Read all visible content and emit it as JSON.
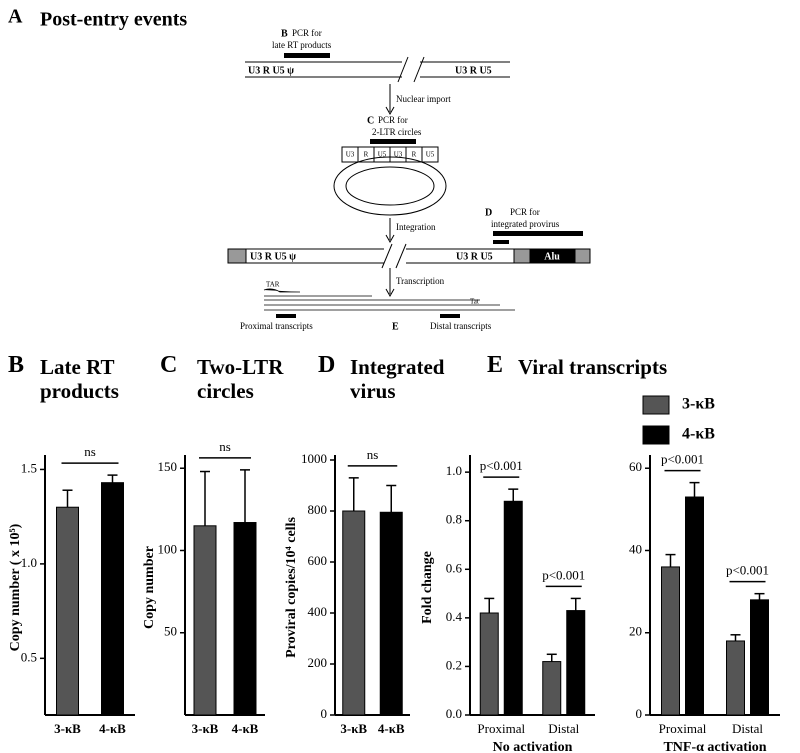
{
  "panel_a": {
    "label": "A",
    "title": "Post-entry events",
    "pcr_b": {
      "label": "B",
      "line1": "PCR for",
      "line2": "late RT products"
    },
    "ltr_left": "U3  R U5 ψ",
    "ltr_right": "U3  R U5",
    "step1": "Nuclear import",
    "pcr_c": {
      "label": "C",
      "line1": "PCR for",
      "line2": "2-LTR circles"
    },
    "circle_boxes": [
      "U3",
      "R",
      "U5",
      "U3",
      "R",
      "U5"
    ],
    "step2": "Integration",
    "pcr_d": {
      "label": "D",
      "line1": "PCR for",
      "line2": "integrated provirus"
    },
    "provirus_left": "U3  R U5 ψ",
    "provirus_right": "U3  R U5",
    "alu": "Alu",
    "step3": "Transcription",
    "tar": "TAR",
    "tat": "Tat",
    "proximal": "Proximal transcripts",
    "e_label": "E",
    "distal": "Distal transcripts"
  },
  "chart_data": [
    {
      "type": "bar",
      "label": "B",
      "title": "Late RT products",
      "ylabel": "Copy number ( x 10⁵)",
      "categories": [
        "3-κB",
        "4-κB"
      ],
      "values": [
        1.3,
        1.43
      ],
      "errors": [
        0.09,
        0.04
      ],
      "colors": [
        "#555555",
        "#000000"
      ],
      "ylim": [
        0.2,
        1.55
      ],
      "yticks": [
        0.5,
        {
          "value": 1,
          "label": "1.0"
        },
        1.5
      ],
      "annotation": "ns"
    },
    {
      "type": "bar",
      "label": "C",
      "title": "Two-LTR circles",
      "ylabel": "Copy number",
      "categories": [
        "3-κB",
        "4-κB"
      ],
      "values": [
        115,
        117
      ],
      "errors": [
        33,
        32
      ],
      "colors": [
        "#555555",
        "#000000"
      ],
      "ylim": [
        0,
        155
      ],
      "yticks": [
        50,
        100,
        150
      ],
      "annotation": "ns"
    },
    {
      "type": "bar",
      "label": "D",
      "title": "Integrated virus",
      "ylabel": "Proviral copies/10⁴ cells",
      "categories": [
        "3-κB",
        "4-κB"
      ],
      "values": [
        800,
        795
      ],
      "errors": [
        130,
        105
      ],
      "colors": [
        "#555555",
        "#000000"
      ],
      "ylim": [
        0,
        1000
      ],
      "yticks": [
        0,
        200,
        400,
        600,
        800,
        1000
      ],
      "annotation": "ns"
    },
    {
      "type": "grouped-bar",
      "label": "E",
      "title": "Viral transcripts",
      "ylabel": "Fold change",
      "xlabel": "No activation",
      "categories": [
        "Proximal",
        "Distal"
      ],
      "series": [
        {
          "name": "3-κB",
          "color": "#555555",
          "values": [
            0.42,
            0.22
          ],
          "errors": [
            0.06,
            0.03
          ]
        },
        {
          "name": "4-κB",
          "color": "#000000",
          "values": [
            0.88,
            0.43
          ],
          "errors": [
            0.05,
            0.05
          ]
        }
      ],
      "ylim": [
        0,
        1.05
      ],
      "yticks": [
        {
          "value": 0,
          "label": "0.0"
        },
        0.2,
        0.4,
        0.6,
        0.8,
        {
          "value": 1,
          "label": "1.0"
        }
      ],
      "annotations": [
        "p<0.001",
        "p<0.001"
      ]
    },
    {
      "type": "grouped-bar",
      "xlabel": "TNF-α activation",
      "categories": [
        "Proximal",
        "Distal"
      ],
      "series": [
        {
          "color": "#555555",
          "values": [
            36,
            18
          ],
          "errors": [
            3,
            1.5
          ]
        },
        {
          "color": "#000000",
          "values": [
            53,
            28
          ],
          "errors": [
            3.5,
            1.5
          ]
        }
      ],
      "ylim": [
        0,
        62
      ],
      "yticks": [
        0,
        20,
        40,
        60
      ],
      "annotations": [
        "p<0.001",
        "p<0.001"
      ]
    }
  ]
}
